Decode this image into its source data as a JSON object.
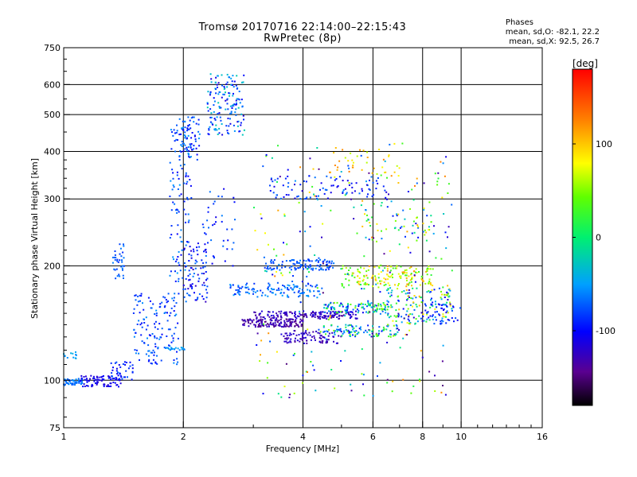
{
  "title_line1": "Tromsø 20170716 22:14:00–22:15:43",
  "title_line2": "RwPretec (8p)",
  "phases": {
    "heading": "Phases",
    "line_o": "mean, sd,O: -82.1, 22.2",
    "line_x": "mean, sd,X: 92.5, 26.7"
  },
  "colorbar": {
    "unit": "[deg]",
    "ticks": [
      "100",
      "0",
      "-100"
    ],
    "tick_values": [
      100,
      0,
      -100
    ],
    "range": [
      -180,
      180
    ]
  },
  "chart_data": {
    "type": "scatter",
    "xlabel": "Frequency [MHz]",
    "ylabel": "Stationary phase Virtual Height [km]",
    "xscale": "log",
    "yscale": "log",
    "xlim": [
      1,
      16
    ],
    "ylim": [
      75,
      750
    ],
    "xticks": [
      1,
      2,
      4,
      6,
      8,
      10,
      16
    ],
    "xtick_labels": [
      "1",
      "2",
      "4",
      "6",
      "8",
      "10",
      "16"
    ],
    "yticks": [
      75,
      100,
      200,
      300,
      400,
      500,
      600,
      750
    ],
    "ytick_labels": [
      "75",
      "100",
      "200",
      "300",
      "400",
      "500",
      "600",
      "750"
    ],
    "x_gridlines": [
      2,
      4,
      6,
      8,
      10
    ],
    "y_gridlines": [
      100,
      200,
      300,
      400,
      500,
      600
    ],
    "grid": true,
    "clusters": [
      {
        "x": [
          1.0,
          1.12
        ],
        "y": [
          97,
          101
        ],
        "phase": [
          -75,
          -55
        ],
        "n": 55
      },
      {
        "x": [
          1.1,
          1.4
        ],
        "y": [
          96,
          103
        ],
        "phase": [
          -120,
          -95
        ],
        "n": 80
      },
      {
        "x": [
          1.3,
          1.5
        ],
        "y": [
          100,
          112
        ],
        "phase": [
          -110,
          -70
        ],
        "n": 40
      },
      {
        "x": [
          1.0,
          1.08
        ],
        "y": [
          113,
          119
        ],
        "phase": [
          -60,
          -40
        ],
        "n": 12
      },
      {
        "x": [
          1.33,
          1.42
        ],
        "y": [
          185,
          230
        ],
        "phase": [
          -90,
          -60
        ],
        "n": 35
      },
      {
        "x": [
          1.5,
          1.95
        ],
        "y": [
          110,
          170
        ],
        "phase": [
          -105,
          -55
        ],
        "n": 140
      },
      {
        "x": [
          1.8,
          2.02
        ],
        "y": [
          120,
          122
        ],
        "phase": [
          -60,
          -45
        ],
        "n": 20
      },
      {
        "x": [
          1.85,
          2.1
        ],
        "y": [
          180,
          480
        ],
        "phase": [
          -105,
          -50
        ],
        "n": 120
      },
      {
        "x": [
          1.95,
          2.2
        ],
        "y": [
          380,
          500
        ],
        "phase": [
          -110,
          -50
        ],
        "n": 60
      },
      {
        "x": [
          2.3,
          2.85
        ],
        "y": [
          440,
          640
        ],
        "phase": [
          -120,
          -20
        ],
        "n": 150
      },
      {
        "x": [
          2.0,
          2.3
        ],
        "y": [
          160,
          230
        ],
        "phase": [
          -130,
          -60
        ],
        "n": 80
      },
      {
        "x": [
          2.2,
          2.7
        ],
        "y": [
          200,
          320
        ],
        "phase": [
          -110,
          -60
        ],
        "n": 40
      },
      {
        "x": [
          2.6,
          4.5
        ],
        "y": [
          165,
          180
        ],
        "phase": [
          -90,
          -50
        ],
        "n": 120
      },
      {
        "x": [
          2.8,
          4.0
        ],
        "y": [
          138,
          145
        ],
        "phase": [
          -150,
          -120
        ],
        "n": 140
      },
      {
        "x": [
          3.0,
          5.5
        ],
        "y": [
          145,
          152
        ],
        "phase": [
          -140,
          -110
        ],
        "n": 160
      },
      {
        "x": [
          3.5,
          5.0
        ],
        "y": [
          125,
          135
        ],
        "phase": [
          -140,
          -110
        ],
        "n": 90
      },
      {
        "x": [
          3.2,
          4.8
        ],
        "y": [
          195,
          208
        ],
        "phase": [
          -90,
          -60
        ],
        "n": 110
      },
      {
        "x": [
          4.5,
          6.5
        ],
        "y": [
          150,
          160
        ],
        "phase": [
          -110,
          60
        ],
        "n": 110
      },
      {
        "x": [
          4.5,
          7.0
        ],
        "y": [
          130,
          140
        ],
        "phase": [
          -130,
          60
        ],
        "n": 110
      },
      {
        "x": [
          5.0,
          8.5
        ],
        "y": [
          175,
          200
        ],
        "phase": [
          20,
          120
        ],
        "n": 160
      },
      {
        "x": [
          6.5,
          9.5
        ],
        "y": [
          140,
          175
        ],
        "phase": [
          -130,
          110
        ],
        "n": 150
      },
      {
        "x": [
          3.3,
          6.5
        ],
        "y": [
          300,
          345
        ],
        "phase": [
          -120,
          -60
        ],
        "n": 90
      },
      {
        "x": [
          4.5,
          7.0
        ],
        "y": [
          340,
          410
        ],
        "phase": [
          60,
          130
        ],
        "n": 40
      },
      {
        "x": [
          5.5,
          8.5
        ],
        "y": [
          230,
          300
        ],
        "phase": [
          -110,
          110
        ],
        "n": 60
      },
      {
        "x": [
          8.0,
          10.0
        ],
        "y": [
          140,
          160
        ],
        "phase": [
          -110,
          -70
        ],
        "n": 40
      },
      {
        "x": [
          3.0,
          9.5
        ],
        "y": [
          90,
          420
        ],
        "phase": [
          -150,
          130
        ],
        "n": 260
      }
    ]
  }
}
